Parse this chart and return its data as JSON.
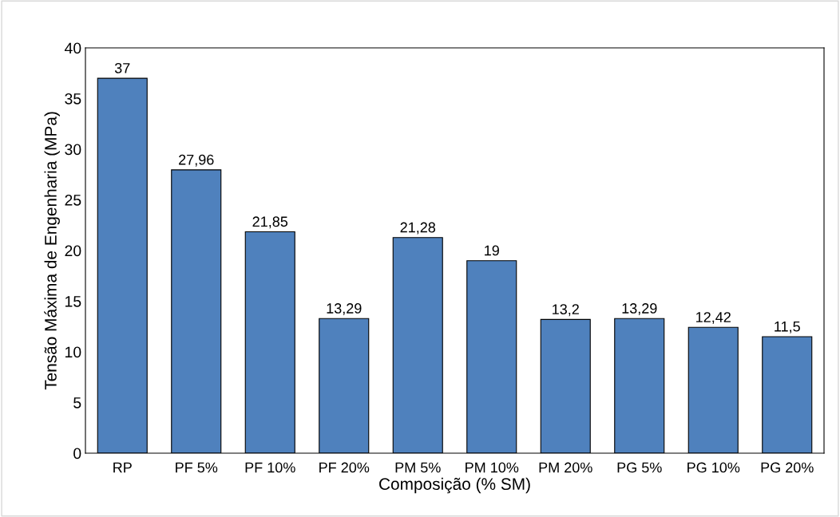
{
  "chart_data": {
    "type": "bar",
    "xlabel": "Composição (% SM)",
    "ylabel": "Tensão Máxima de Engenharia (MPa)",
    "categories": [
      "RP",
      "PF 5%",
      "PF 10%",
      "PF 20%",
      "PM 5%",
      "PM 10%",
      "PM 20%",
      "PG 5%",
      "PG 10%",
      "PG 20%"
    ],
    "values": [
      37,
      27.96,
      21.85,
      13.29,
      21.28,
      19,
      13.2,
      13.29,
      12.42,
      11.5
    ],
    "value_labels": [
      "37",
      "27,96",
      "21,85",
      "13,29",
      "21,28",
      "19",
      "13,2",
      "13,29",
      "12,42",
      "11,5"
    ],
    "color": "#4f81bd",
    "ylim": [
      0,
      40
    ],
    "yticks": [
      0,
      5,
      10,
      15,
      20,
      25,
      30,
      35,
      40
    ],
    "grid": false,
    "legend": false
  }
}
